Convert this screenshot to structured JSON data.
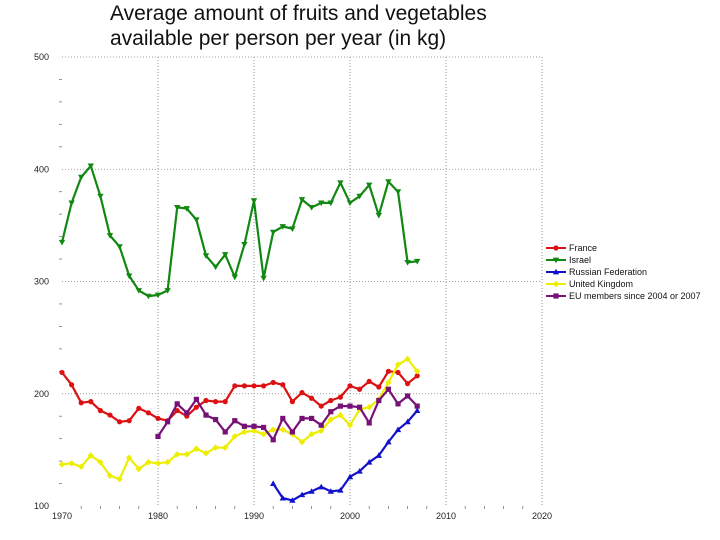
{
  "chart_data": {
    "type": "line",
    "title_line1": "Average amount of fruits and vegetables",
    "title_line2": "available per person per year (in kg)",
    "xlabel": "",
    "ylabel": "",
    "xlim": [
      1970,
      2020
    ],
    "ylim": [
      100,
      500
    ],
    "xticks": [
      "1970",
      "1980",
      "1990",
      "2000",
      "2010",
      "2020"
    ],
    "yticks": [
      "100",
      "200",
      "300",
      "400",
      "500"
    ],
    "grid": true,
    "legend_position": "right",
    "series": [
      {
        "name": "France",
        "color": "#dd1111",
        "marker": "circle",
        "x": [
          1970,
          1971,
          1972,
          1973,
          1974,
          1975,
          1976,
          1977,
          1978,
          1979,
          1980,
          1981,
          1982,
          1983,
          1984,
          1985,
          1986,
          1987,
          1988,
          1989,
          1990,
          1991,
          1992,
          1993,
          1994,
          1995,
          1996,
          1997,
          1998,
          1999,
          2000,
          2001,
          2002,
          2003,
          2004,
          2005,
          2006,
          2007
        ],
        "values": [
          219,
          208,
          192,
          193,
          185,
          181,
          175,
          176,
          187,
          183,
          178,
          176,
          185,
          180,
          188,
          194,
          193,
          193,
          207,
          207,
          207,
          207,
          210,
          208,
          193,
          201,
          196,
          189,
          194,
          197,
          207,
          204,
          211,
          206,
          220,
          219,
          209,
          216
        ]
      },
      {
        "name": "Israel",
        "color": "#118811",
        "marker": "triangle-down",
        "x": [
          1970,
          1971,
          1972,
          1973,
          1974,
          1975,
          1976,
          1977,
          1978,
          1979,
          1980,
          1981,
          1982,
          1983,
          1984,
          1985,
          1986,
          1987,
          1988,
          1989,
          1990,
          1991,
          1992,
          1993,
          1994,
          1995,
          1996,
          1997,
          1998,
          1999,
          2000,
          2001,
          2002,
          2003,
          2004,
          2005,
          2006,
          2007
        ],
        "values": [
          335,
          370,
          393,
          403,
          376,
          341,
          331,
          305,
          292,
          287,
          288,
          292,
          366,
          365,
          355,
          323,
          313,
          324,
          304,
          333,
          372,
          303,
          344,
          349,
          347,
          373,
          366,
          370,
          370,
          388,
          370,
          376,
          386,
          359,
          389,
          380,
          317,
          318
        ]
      },
      {
        "name": "Russian Federation",
        "color": "#1111cc",
        "marker": "triangle-up",
        "x": [
          1992,
          1993,
          1994,
          1995,
          1996,
          1997,
          1998,
          1999,
          2000,
          2001,
          2002,
          2003,
          2004,
          2005,
          2006,
          2007
        ],
        "values": [
          120,
          107,
          105,
          110,
          113,
          117,
          113,
          114,
          126,
          131,
          139,
          145,
          157,
          168,
          175,
          185
        ]
      },
      {
        "name": "United Kingdom",
        "color": "#eeee00",
        "marker": "diamond",
        "x": [
          1970,
          1971,
          1972,
          1973,
          1974,
          1975,
          1976,
          1977,
          1978,
          1979,
          1980,
          1981,
          1982,
          1983,
          1984,
          1985,
          1986,
          1987,
          1988,
          1989,
          1990,
          1991,
          1992,
          1993,
          1994,
          1995,
          1996,
          1997,
          1998,
          1999,
          2000,
          2001,
          2002,
          2003,
          2004,
          2005,
          2006,
          2007
        ],
        "values": [
          137,
          138,
          135,
          145,
          139,
          127,
          124,
          143,
          133,
          139,
          138,
          139,
          146,
          146,
          151,
          147,
          152,
          152,
          162,
          166,
          167,
          164,
          168,
          168,
          164,
          157,
          164,
          167,
          177,
          181,
          172,
          186,
          188,
          195,
          210,
          226,
          231,
          220
        ]
      },
      {
        "name": "EU members since 2004 or 2007",
        "color": "#771177",
        "marker": "square",
        "x": [
          1980,
          1981,
          1982,
          1983,
          1984,
          1985,
          1986,
          1987,
          1988,
          1989,
          1990,
          1991,
          1992,
          1993,
          1994,
          1995,
          1996,
          1997,
          1998,
          1999,
          2000,
          2001,
          2002,
          2003,
          2004,
          2005,
          2006,
          2007
        ],
        "values": [
          162,
          175,
          191,
          183,
          195,
          181,
          177,
          166,
          176,
          171,
          171,
          170,
          159,
          178,
          166,
          178,
          178,
          172,
          184,
          189,
          189,
          188,
          174,
          194,
          204,
          191,
          198,
          189
        ]
      }
    ]
  }
}
